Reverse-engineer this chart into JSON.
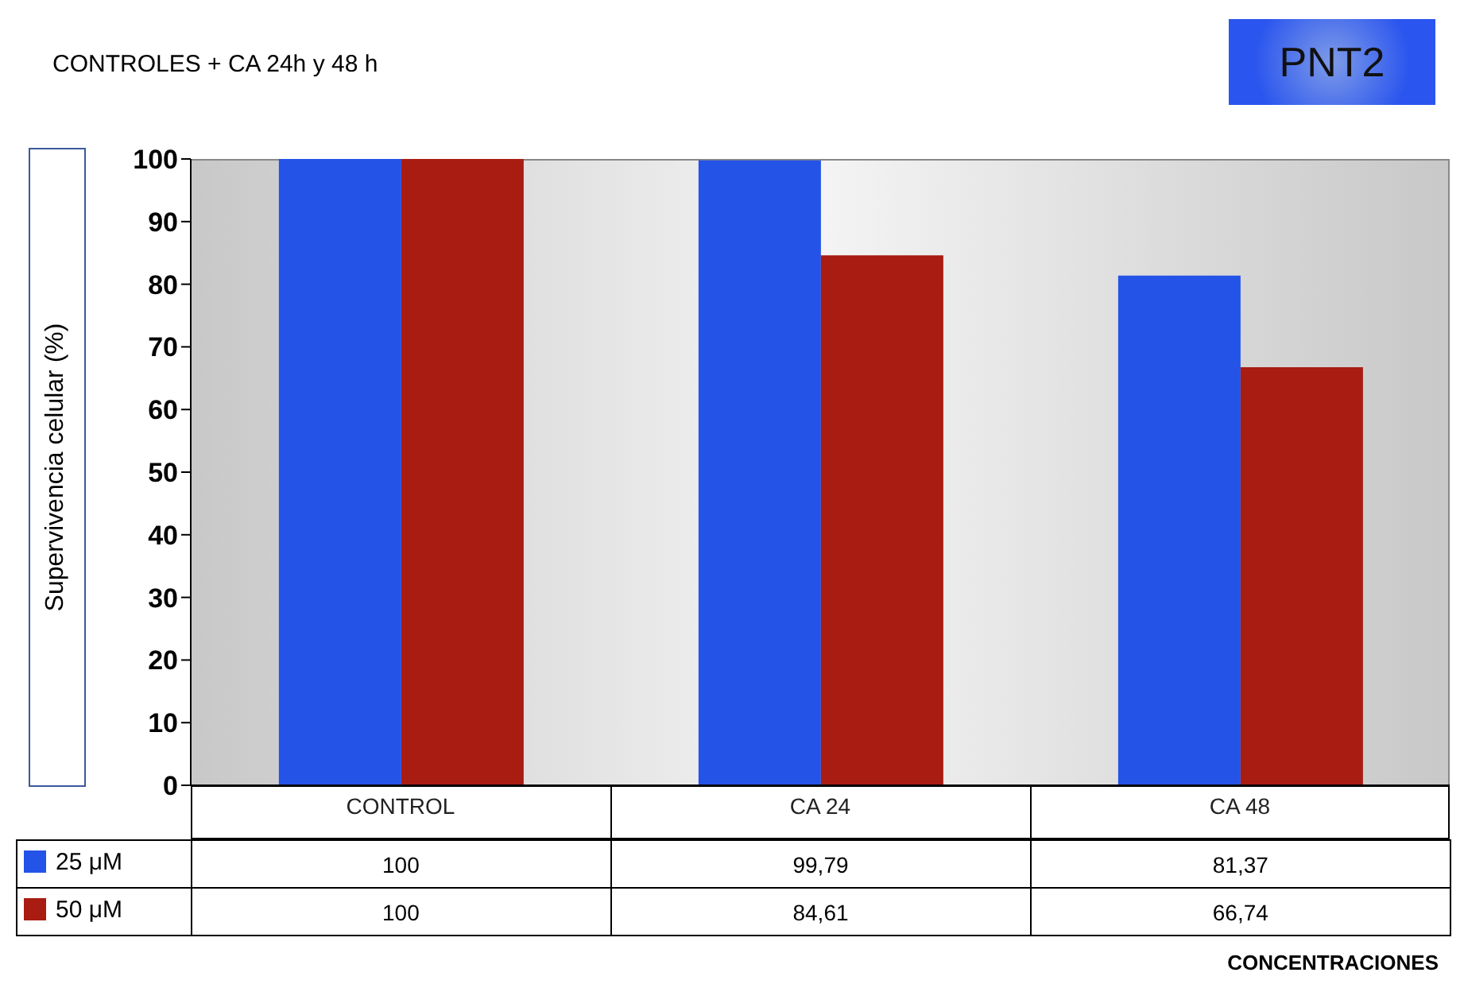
{
  "chart_data": {
    "type": "bar",
    "title": "CONTROLES + CA 24h y 48 h",
    "annotations": [
      "PNT2",
      "CONCENTRACIONES"
    ],
    "ylabel": "Supervivencia celular (%)",
    "categories": [
      "CONTROL",
      "CA 24",
      "CA 48"
    ],
    "series": [
      {
        "name": "25 μM",
        "color": "#2453e8",
        "values": [
          100,
          99.79,
          81.37
        ],
        "value_labels": [
          "100",
          "99,79",
          "81,37"
        ]
      },
      {
        "name": "50 μM",
        "color": "#a81c12",
        "values": [
          100,
          84.61,
          66.74
        ],
        "value_labels": [
          "100",
          "84,61",
          "66,74"
        ]
      }
    ],
    "ylim": [
      0,
      100
    ],
    "yticks": [
      0,
      10,
      20,
      30,
      40,
      50,
      60,
      70,
      80,
      90,
      100
    ],
    "legend": "bottom left",
    "grid": false
  }
}
